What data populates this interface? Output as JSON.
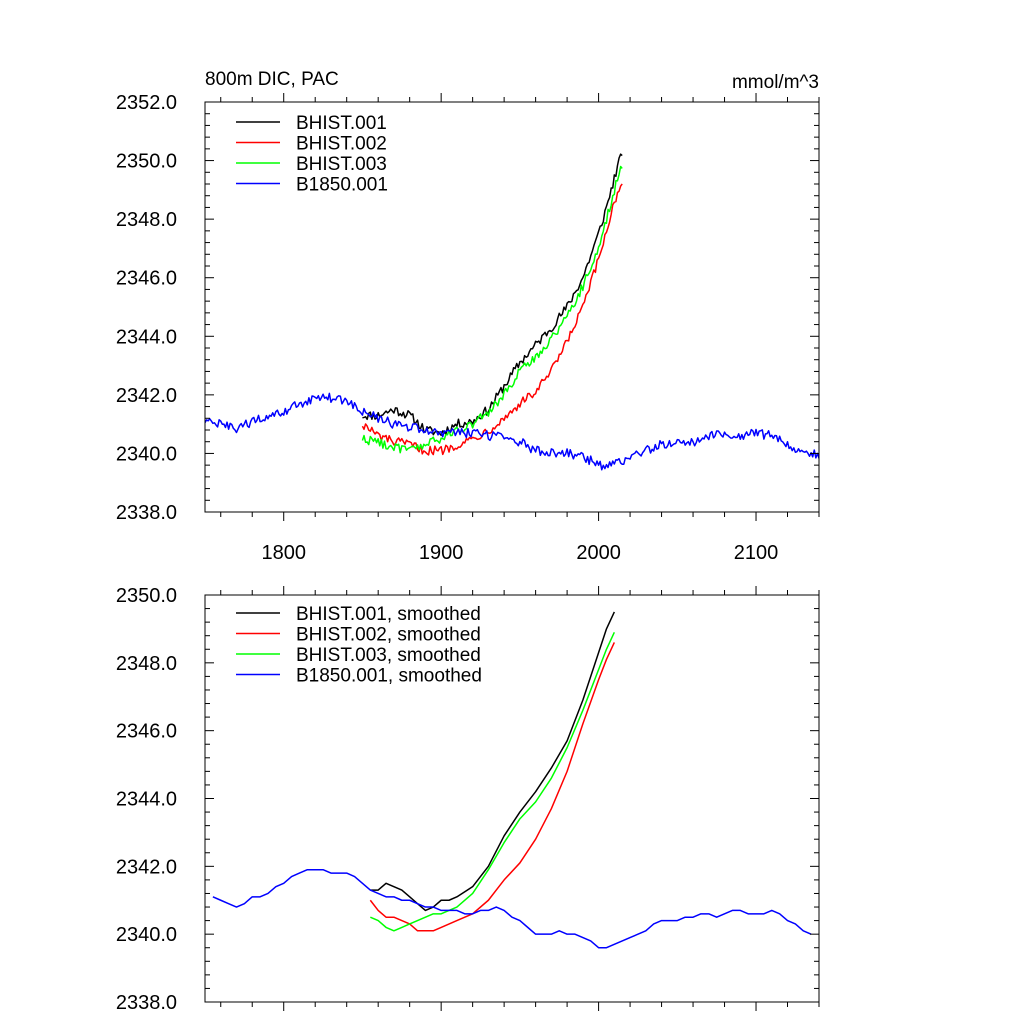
{
  "chart_data": [
    {
      "type": "line",
      "title": "800m DIC, PAC",
      "units": "mmol/m^3",
      "xlim": [
        1750,
        2140
      ],
      "ylim": [
        2338.0,
        2352.0
      ],
      "xticks": [
        1800,
        1900,
        2000,
        2100
      ],
      "xtick_labels": [
        "1800",
        "1900",
        "2000",
        "2100"
      ],
      "yticks": [
        2338.0,
        2340.0,
        2342.0,
        2344.0,
        2346.0,
        2348.0,
        2350.0,
        2352.0
      ],
      "ytick_labels": [
        "2338.0",
        "2340.0",
        "2342.0",
        "2344.0",
        "2346.0",
        "2348.0",
        "2350.0",
        "2352.0"
      ],
      "legend_position": "top-left",
      "noise": 0.16,
      "series": [
        {
          "name": "BHIST.001",
          "color": "#000000",
          "x": [
            1850,
            1860,
            1870,
            1880,
            1890,
            1900,
            1910,
            1920,
            1930,
            1940,
            1950,
            1960,
            1970,
            1980,
            1990,
            2000,
            2005,
            2010,
            2015
          ],
          "y": [
            2341.3,
            2341.3,
            2341.5,
            2341.3,
            2340.8,
            2340.7,
            2341.0,
            2341.1,
            2341.5,
            2342.3,
            2343.1,
            2343.7,
            2344.3,
            2345.0,
            2346.0,
            2347.5,
            2348.4,
            2349.4,
            2350.3
          ]
        },
        {
          "name": "BHIST.002",
          "color": "#ff0000",
          "x": [
            1850,
            1860,
            1870,
            1880,
            1890,
            1900,
            1910,
            1920,
            1930,
            1940,
            1950,
            1960,
            1970,
            1980,
            1990,
            2000,
            2005,
            2010,
            2015
          ],
          "y": [
            2341.0,
            2340.6,
            2340.4,
            2340.3,
            2340.1,
            2340.1,
            2340.3,
            2340.5,
            2340.8,
            2341.2,
            2341.7,
            2342.1,
            2342.8,
            2343.8,
            2345.0,
            2346.6,
            2347.6,
            2348.6,
            2349.3
          ]
        },
        {
          "name": "BHIST.003",
          "color": "#00ff00",
          "x": [
            1850,
            1860,
            1870,
            1880,
            1890,
            1900,
            1910,
            1920,
            1930,
            1940,
            1950,
            1960,
            1970,
            1980,
            1990,
            2000,
            2005,
            2010,
            2015
          ],
          "y": [
            2340.5,
            2340.4,
            2340.2,
            2340.1,
            2340.3,
            2340.5,
            2340.8,
            2341.0,
            2341.4,
            2342.0,
            2342.8,
            2343.3,
            2343.9,
            2344.7,
            2345.7,
            2347.0,
            2348.0,
            2349.0,
            2349.8
          ]
        },
        {
          "name": "B1850.001",
          "color": "#0000ff",
          "x": [
            1750,
            1760,
            1770,
            1780,
            1790,
            1800,
            1810,
            1820,
            1830,
            1840,
            1850,
            1860,
            1870,
            1880,
            1890,
            1900,
            1910,
            1920,
            1930,
            1940,
            1950,
            1960,
            1970,
            1980,
            1990,
            2000,
            2010,
            2020,
            2030,
            2040,
            2050,
            2060,
            2070,
            2080,
            2090,
            2100,
            2110,
            2120,
            2130,
            2140
          ],
          "y": [
            2341.1,
            2341.0,
            2340.8,
            2341.1,
            2341.2,
            2341.4,
            2341.7,
            2341.9,
            2341.9,
            2341.8,
            2341.4,
            2341.2,
            2341.0,
            2340.9,
            2340.8,
            2340.7,
            2340.7,
            2340.7,
            2340.6,
            2340.6,
            2340.4,
            2340.1,
            2340.0,
            2340.0,
            2339.9,
            2339.6,
            2339.6,
            2339.9,
            2340.1,
            2340.3,
            2340.4,
            2340.4,
            2340.6,
            2340.7,
            2340.6,
            2340.7,
            2340.6,
            2340.3,
            2340.1,
            2339.9
          ]
        }
      ]
    },
    {
      "type": "line",
      "title": "",
      "units": "",
      "xlim": [
        1750,
        2140
      ],
      "ylim": [
        2338.0,
        2350.0
      ],
      "xticks": [
        1800,
        1900,
        2000,
        2100
      ],
      "xtick_labels": [],
      "yticks": [
        2338.0,
        2340.0,
        2342.0,
        2344.0,
        2346.0,
        2348.0,
        2350.0
      ],
      "ytick_labels": [
        "2338.0",
        "2340.0",
        "2342.0",
        "2344.0",
        "2346.0",
        "2348.0",
        "2350.0"
      ],
      "legend_position": "top-left",
      "noise": 0,
      "series": [
        {
          "name": "BHIST.001, smoothed",
          "color": "#000000",
          "x": [
            1855,
            1860,
            1865,
            1870,
            1875,
            1880,
            1885,
            1890,
            1895,
            1900,
            1905,
            1910,
            1920,
            1930,
            1940,
            1950,
            1960,
            1970,
            1980,
            1990,
            2000,
            2005,
            2010
          ],
          "y": [
            2341.3,
            2341.3,
            2341.5,
            2341.4,
            2341.3,
            2341.1,
            2340.9,
            2340.7,
            2340.8,
            2341.0,
            2341.0,
            2341.1,
            2341.4,
            2342.0,
            2342.9,
            2343.6,
            2344.2,
            2344.9,
            2345.7,
            2346.9,
            2348.3,
            2349.0,
            2349.5
          ]
        },
        {
          "name": "BHIST.002, smoothed",
          "color": "#ff0000",
          "x": [
            1855,
            1860,
            1865,
            1870,
            1875,
            1880,
            1885,
            1890,
            1895,
            1900,
            1910,
            1920,
            1930,
            1940,
            1950,
            1960,
            1970,
            1980,
            1990,
            2000,
            2005,
            2010
          ],
          "y": [
            2341.0,
            2340.7,
            2340.5,
            2340.5,
            2340.4,
            2340.3,
            2340.1,
            2340.1,
            2340.1,
            2340.2,
            2340.4,
            2340.6,
            2341.0,
            2341.6,
            2342.1,
            2342.8,
            2343.7,
            2344.8,
            2346.2,
            2347.5,
            2348.1,
            2348.6
          ]
        },
        {
          "name": "BHIST.003, smoothed",
          "color": "#00ff00",
          "x": [
            1855,
            1860,
            1865,
            1870,
            1875,
            1880,
            1885,
            1890,
            1895,
            1900,
            1910,
            1920,
            1930,
            1940,
            1950,
            1960,
            1970,
            1980,
            1990,
            2000,
            2005,
            2010
          ],
          "y": [
            2340.5,
            2340.4,
            2340.2,
            2340.1,
            2340.2,
            2340.3,
            2340.4,
            2340.5,
            2340.6,
            2340.6,
            2340.8,
            2341.2,
            2341.9,
            2342.7,
            2343.4,
            2343.9,
            2344.6,
            2345.5,
            2346.6,
            2347.8,
            2348.4,
            2348.9
          ]
        },
        {
          "name": "B1850.001, smoothed",
          "color": "#0000ff",
          "x": [
            1755,
            1760,
            1765,
            1770,
            1775,
            1780,
            1785,
            1790,
            1795,
            1800,
            1805,
            1810,
            1815,
            1820,
            1825,
            1830,
            1835,
            1840,
            1845,
            1850,
            1855,
            1860,
            1865,
            1870,
            1875,
            1880,
            1885,
            1890,
            1895,
            1900,
            1905,
            1910,
            1915,
            1920,
            1925,
            1930,
            1935,
            1940,
            1945,
            1950,
            1955,
            1960,
            1965,
            1970,
            1975,
            1980,
            1985,
            1990,
            1995,
            2000,
            2005,
            2010,
            2015,
            2020,
            2025,
            2030,
            2035,
            2040,
            2045,
            2050,
            2055,
            2060,
            2065,
            2070,
            2075,
            2080,
            2085,
            2090,
            2095,
            2100,
            2105,
            2110,
            2115,
            2120,
            2125,
            2130,
            2135
          ],
          "y": [
            2341.1,
            2341.0,
            2340.9,
            2340.8,
            2340.9,
            2341.1,
            2341.1,
            2341.2,
            2341.4,
            2341.5,
            2341.7,
            2341.8,
            2341.9,
            2341.9,
            2341.9,
            2341.8,
            2341.8,
            2341.8,
            2341.7,
            2341.5,
            2341.3,
            2341.2,
            2341.1,
            2341.1,
            2341.0,
            2341.0,
            2340.9,
            2340.8,
            2340.8,
            2340.7,
            2340.7,
            2340.7,
            2340.6,
            2340.6,
            2340.7,
            2340.7,
            2340.8,
            2340.7,
            2340.5,
            2340.4,
            2340.2,
            2340.0,
            2340.0,
            2340.0,
            2340.1,
            2340.0,
            2340.0,
            2339.9,
            2339.8,
            2339.6,
            2339.6,
            2339.7,
            2339.8,
            2339.9,
            2340.0,
            2340.1,
            2340.3,
            2340.4,
            2340.4,
            2340.4,
            2340.5,
            2340.5,
            2340.6,
            2340.6,
            2340.5,
            2340.6,
            2340.7,
            2340.7,
            2340.6,
            2340.6,
            2340.6,
            2340.7,
            2340.6,
            2340.4,
            2340.3,
            2340.1,
            2340.0
          ]
        }
      ]
    }
  ]
}
